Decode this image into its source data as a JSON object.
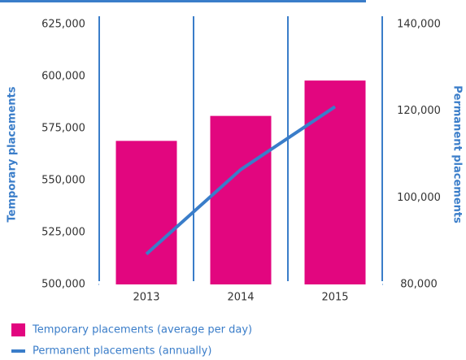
{
  "chart_data": {
    "type": "bar",
    "categories": [
      "2013",
      "2014",
      "2015"
    ],
    "series": [
      {
        "name": "Temporary placements (average per day)",
        "color": "#e2067f",
        "type": "bar",
        "values": [
          569000,
          581000,
          598000
        ]
      },
      {
        "name": "Permanent placements (annually)",
        "color": "#3a7dc9",
        "type": "line",
        "axis": "y2",
        "values": [
          87000,
          106500,
          121000
        ]
      }
    ],
    "ylabel": "Temporary placements",
    "y2label": "Permanent placements",
    "ylim": [
      500000,
      625000
    ],
    "yticks": [
      {
        "value": 500000,
        "label": "500,000"
      },
      {
        "value": 525000,
        "label": "525,000"
      },
      {
        "value": 550000,
        "label": "550,000"
      },
      {
        "value": 575000,
        "label": "575,000"
      },
      {
        "value": 600000,
        "label": "600,000"
      },
      {
        "value": 625000,
        "label": "625,000"
      }
    ],
    "y2lim": [
      80000,
      140000
    ],
    "y2ticks": [
      {
        "value": 80000,
        "label": "80,000"
      },
      {
        "value": 100000,
        "label": "100,000"
      },
      {
        "value": 120000,
        "label": "120,000"
      },
      {
        "value": 140000,
        "label": "140,000"
      }
    ],
    "legend": "bottom-left"
  }
}
